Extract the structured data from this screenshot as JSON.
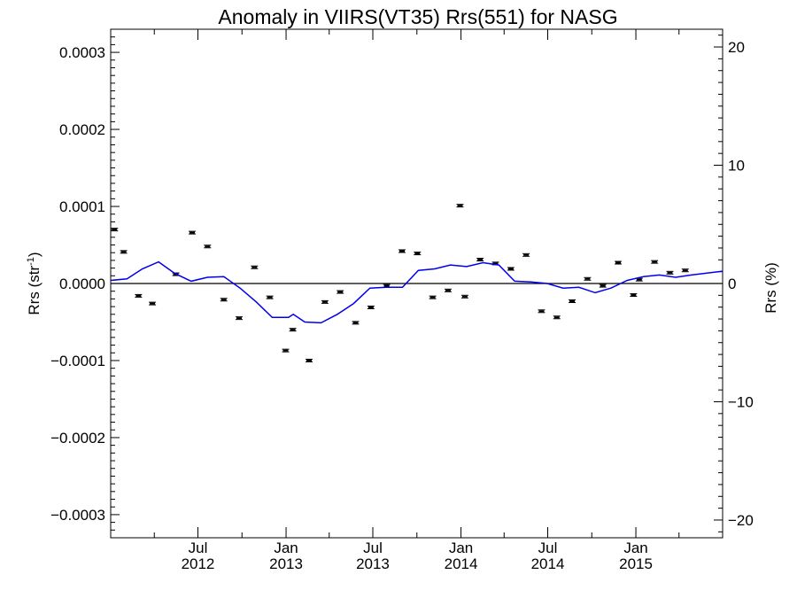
{
  "chart_data": {
    "type": "line",
    "title": "Anomaly in VIIRS(VT35) Rrs(551) for NASG",
    "ylabel_left": {
      "base": "Rrs (str",
      "sup": "-1",
      "tail": ")"
    },
    "ylabel_right": "Rrs (%)",
    "xlim": [
      "2012-01-01",
      "2015-07-01"
    ],
    "ylim_left": [
      -0.00033,
      0.00033
    ],
    "ylim_right": [
      -21.5,
      21.5
    ],
    "zero_line": true,
    "x_ticks": [
      {
        "date": "2012-07-01",
        "line1": "Jul",
        "line2": "2012"
      },
      {
        "date": "2013-01-01",
        "line1": "Jan",
        "line2": "2013"
      },
      {
        "date": "2013-07-01",
        "line1": "Jul",
        "line2": "2013"
      },
      {
        "date": "2014-01-01",
        "line1": "Jan",
        "line2": "2014"
      },
      {
        "date": "2014-07-01",
        "line1": "Jul",
        "line2": "2014"
      },
      {
        "date": "2015-01-01",
        "line1": "Jan",
        "line2": "2015"
      }
    ],
    "y_ticks_left": [
      {
        "value": 0.0003,
        "label": "0.0003"
      },
      {
        "value": 0.0002,
        "label": "0.0002"
      },
      {
        "value": 0.0001,
        "label": "0.0001"
      },
      {
        "value": 0.0,
        "label": "0.0000"
      },
      {
        "value": -0.0001,
        "label": "−0.0001"
      },
      {
        "value": -0.0002,
        "label": "−0.0002"
      },
      {
        "value": -0.0003,
        "label": "−0.0003"
      }
    ],
    "y_ticks_right": [
      {
        "value": 20,
        "label": "20"
      },
      {
        "value": 10,
        "label": "10"
      },
      {
        "value": 0,
        "label": "0"
      },
      {
        "value": -10,
        "label": "−10"
      },
      {
        "value": -20,
        "label": "−20"
      }
    ],
    "series": [
      {
        "kind": "points_with_errorbars",
        "color": "#000000",
        "points": [
          {
            "x": "2012-01-09",
            "y": 7e-05
          },
          {
            "x": "2012-01-28",
            "y": 4.1e-05
          },
          {
            "x": "2012-02-28",
            "y": -1.6e-05
          },
          {
            "x": "2012-03-28",
            "y": -2.6e-05
          },
          {
            "x": "2012-05-16",
            "y": 1.2e-05
          },
          {
            "x": "2012-06-19",
            "y": 6.6e-05
          },
          {
            "x": "2012-07-21",
            "y": 4.8e-05
          },
          {
            "x": "2012-08-24",
            "y": -2.1e-05
          },
          {
            "x": "2012-09-25",
            "y": -4.5e-05
          },
          {
            "x": "2012-10-27",
            "y": 2.1e-05
          },
          {
            "x": "2012-11-28",
            "y": -1.8e-05
          },
          {
            "x": "2012-12-31",
            "y": -8.7e-05
          },
          {
            "x": "2013-01-15",
            "y": -6e-05
          },
          {
            "x": "2013-02-18",
            "y": -0.0001
          },
          {
            "x": "2013-03-23",
            "y": -2.4e-05
          },
          {
            "x": "2013-04-24",
            "y": -1.1e-05
          },
          {
            "x": "2013-05-26",
            "y": -5.1e-05
          },
          {
            "x": "2013-06-27",
            "y": -3.1e-05
          },
          {
            "x": "2013-07-30",
            "y": -3e-06
          },
          {
            "x": "2013-08-31",
            "y": 4.2e-05
          },
          {
            "x": "2013-10-02",
            "y": 3.9e-05
          },
          {
            "x": "2013-11-03",
            "y": -1.8e-05
          },
          {
            "x": "2013-12-05",
            "y": -9e-06
          },
          {
            "x": "2013-12-30",
            "y": 0.000101
          },
          {
            "x": "2014-01-09",
            "y": -1.7e-05
          },
          {
            "x": "2014-02-10",
            "y": 3.1e-05
          },
          {
            "x": "2014-03-14",
            "y": 2.6e-05
          },
          {
            "x": "2014-04-15",
            "y": 1.9e-05
          },
          {
            "x": "2014-05-17",
            "y": 3.7e-05
          },
          {
            "x": "2014-06-18",
            "y": -3.6e-05
          },
          {
            "x": "2014-07-20",
            "y": -4.4e-05
          },
          {
            "x": "2014-08-21",
            "y": -2.3e-05
          },
          {
            "x": "2014-09-22",
            "y": 6e-06
          },
          {
            "x": "2014-10-24",
            "y": -3e-06
          },
          {
            "x": "2014-11-25",
            "y": 2.7e-05
          },
          {
            "x": "2014-12-27",
            "y": -1.5e-05
          },
          {
            "x": "2015-01-08",
            "y": 5e-06
          },
          {
            "x": "2015-02-09",
            "y": 2.8e-05
          },
          {
            "x": "2015-03-13",
            "y": 1.4e-05
          },
          {
            "x": "2015-04-14",
            "y": 1.7e-05
          }
        ]
      },
      {
        "kind": "line",
        "color": "#0000ee",
        "points": [
          {
            "x": "2012-01-01",
            "y": 4e-06
          },
          {
            "x": "2012-02-04",
            "y": 6e-06
          },
          {
            "x": "2012-03-07",
            "y": 1.9e-05
          },
          {
            "x": "2012-04-10",
            "y": 2.8e-05
          },
          {
            "x": "2012-05-14",
            "y": 1.3e-05
          },
          {
            "x": "2012-06-17",
            "y": 3e-06
          },
          {
            "x": "2012-07-21",
            "y": 8e-06
          },
          {
            "x": "2012-08-24",
            "y": 9e-06
          },
          {
            "x": "2012-09-27",
            "y": -6e-06
          },
          {
            "x": "2012-10-31",
            "y": -2.4e-05
          },
          {
            "x": "2012-12-03",
            "y": -4.4e-05
          },
          {
            "x": "2013-01-06",
            "y": -4.4e-05
          },
          {
            "x": "2013-01-16",
            "y": -4e-05
          },
          {
            "x": "2013-02-09",
            "y": -5e-05
          },
          {
            "x": "2013-03-15",
            "y": -5.1e-05
          },
          {
            "x": "2013-04-18",
            "y": -4e-05
          },
          {
            "x": "2013-05-22",
            "y": -2.6e-05
          },
          {
            "x": "2013-06-25",
            "y": -6e-06
          },
          {
            "x": "2013-07-29",
            "y": -5e-06
          },
          {
            "x": "2013-09-01",
            "y": -5e-06
          },
          {
            "x": "2013-10-04",
            "y": 1.7e-05
          },
          {
            "x": "2013-11-07",
            "y": 1.9e-05
          },
          {
            "x": "2013-12-10",
            "y": 2.4e-05
          },
          {
            "x": "2014-01-13",
            "y": 2.2e-05
          },
          {
            "x": "2014-02-16",
            "y": 2.7e-05
          },
          {
            "x": "2014-03-21",
            "y": 2.4e-05
          },
          {
            "x": "2014-04-23",
            "y": 3e-06
          },
          {
            "x": "2014-05-27",
            "y": 2e-06
          },
          {
            "x": "2014-06-30",
            "y": 0.0
          },
          {
            "x": "2014-08-02",
            "y": -6e-06
          },
          {
            "x": "2014-09-04",
            "y": -5e-06
          },
          {
            "x": "2014-10-08",
            "y": -1.2e-05
          },
          {
            "x": "2014-11-10",
            "y": -6e-06
          },
          {
            "x": "2014-12-14",
            "y": 4e-06
          },
          {
            "x": "2015-01-17",
            "y": 9e-06
          },
          {
            "x": "2015-02-19",
            "y": 1.1e-05
          },
          {
            "x": "2015-03-25",
            "y": 8e-06
          },
          {
            "x": "2015-04-27",
            "y": 1.1e-05
          },
          {
            "x": "2015-07-01",
            "y": 1.6e-05
          }
        ]
      }
    ]
  }
}
